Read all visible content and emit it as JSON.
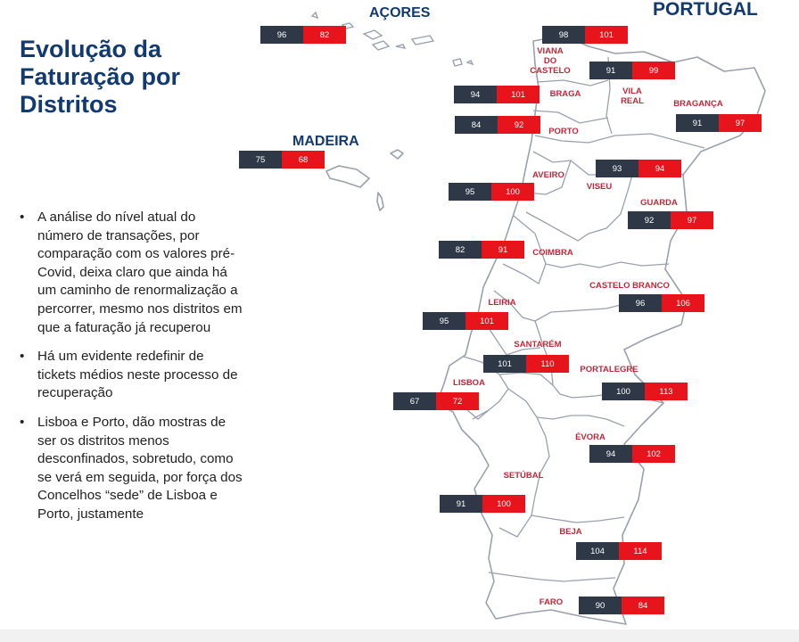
{
  "title": "Evolução da Faturação por Distritos",
  "bullets": [
    "A análise do nível atual do número de transações, por comparação com os valores pré-Covid, deixa claro que ainda há um caminho de renormalização a percorrer, mesmo nos distritos em que a faturação já recuperou",
    "Há um evidente redefinir de tickets médios neste processo de recuperação",
    "Lisboa e Porto, dão mostras de ser os distritos menos desconfinados, sobretudo, como se verá em seguida, por força dos Concelhos “sede” de Lisboa e Porto, justamente"
  ],
  "bullet_symbol": "•",
  "map_labels": {
    "country": "PORTUGAL",
    "azores": "AÇORES",
    "madeira": "MADEIRA"
  },
  "colors": {
    "title": "#123a70",
    "district_name": "#c0283a",
    "prev_box": "#2e3847",
    "curr_box": "#e8141c",
    "border": "#9aa1ad"
  },
  "districts": [
    {
      "name": "VIANA\nDO CASTELO",
      "v1": "98",
      "v2": "101"
    },
    {
      "name": "VILA\nREAL",
      "v1": "91",
      "v2": "99"
    },
    {
      "name": "BRAGA",
      "v1": "94",
      "v2": "101"
    },
    {
      "name": "BRAGANÇA",
      "v1": "91",
      "v2": "97"
    },
    {
      "name": "PORTO",
      "v1": "84",
      "v2": "92"
    },
    {
      "name": "AVEIRO",
      "v1": "95",
      "v2": "100"
    },
    {
      "name": "VISEU",
      "v1": "93",
      "v2": "94"
    },
    {
      "name": "GUARDA",
      "v1": "92",
      "v2": "97"
    },
    {
      "name": "COIMBRA",
      "v1": "82",
      "v2": "91"
    },
    {
      "name": "CASTELO BRANCO",
      "v1": "96",
      "v2": "106"
    },
    {
      "name": "LEIRIA",
      "v1": "95",
      "v2": "101"
    },
    {
      "name": "SANTARÉM",
      "v1": "101",
      "v2": "110"
    },
    {
      "name": "PORTALEGRE",
      "v1": "100",
      "v2": "113"
    },
    {
      "name": "LISBOA",
      "v1": "67",
      "v2": "72"
    },
    {
      "name": "ÉVORA",
      "v1": "94",
      "v2": "102"
    },
    {
      "name": "SETÚBAL",
      "v1": "91",
      "v2": "100"
    },
    {
      "name": "BEJA",
      "v1": "104",
      "v2": "114"
    },
    {
      "name": "FARO",
      "v1": "90",
      "v2": "84"
    }
  ],
  "islands": [
    {
      "name": "AÇORES",
      "v1": "96",
      "v2": "82"
    },
    {
      "name": "MADEIRA",
      "v1": "75",
      "v2": "68"
    }
  ]
}
